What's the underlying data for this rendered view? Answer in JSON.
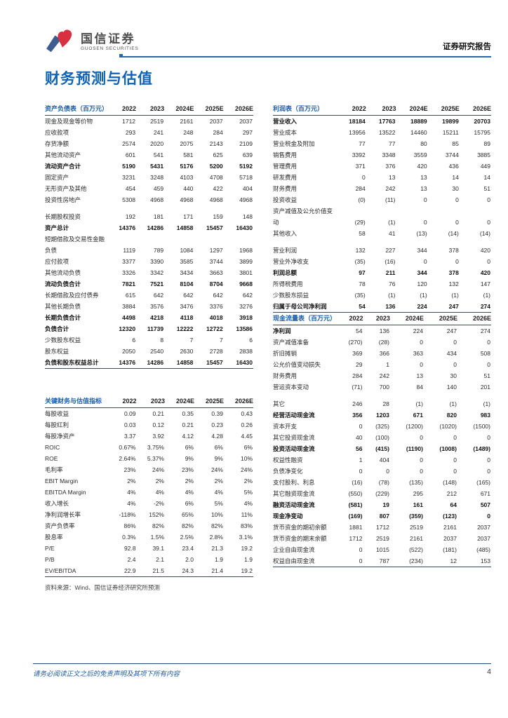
{
  "header": {
    "brand_cn": "国信证券",
    "brand_en": "GUOSEN SECURITIES",
    "report_type": "证券研究报告"
  },
  "page_title": "财务预测与估值",
  "source_note": "资料来源：Wind、国信证券经济研究所预测",
  "footer": {
    "disclaimer": "请务必阅读正文之后的免责声明及其项下所有内容",
    "page_number": "4"
  },
  "colors": {
    "accent_blue": "#2668b3",
    "title_blue": "#0f62b4",
    "table_title_blue": "#1e5fa8",
    "logo_blue": "#3e5c8f",
    "logo_red": "#d93040"
  },
  "tables": {
    "balance_sheet": {
      "title": "资产负债表（百万元）",
      "years": [
        "2022",
        "2023",
        "2024E",
        "2025E",
        "2026E"
      ],
      "rows": [
        {
          "label": "现金及现金等价物",
          "values": [
            "1712",
            "2519",
            "2161",
            "2037",
            "2037"
          ]
        },
        {
          "label": "应收款项",
          "values": [
            "293",
            "241",
            "248",
            "284",
            "297"
          ]
        },
        {
          "label": "存货净额",
          "values": [
            "2574",
            "2020",
            "2075",
            "2143",
            "2109"
          ]
        },
        {
          "label": "其他流动资产",
          "values": [
            "601",
            "541",
            "581",
            "625",
            "639"
          ]
        },
        {
          "label": "流动资产合计",
          "values": [
            "5190",
            "5431",
            "5176",
            "5200",
            "5192"
          ],
          "bold": true
        },
        {
          "label": "固定资产",
          "values": [
            "3231",
            "3248",
            "4103",
            "4708",
            "5718"
          ]
        },
        {
          "label": "无形资产及其他",
          "values": [
            "454",
            "459",
            "440",
            "422",
            "404"
          ]
        },
        {
          "label": "投资性房地产",
          "values": [
            "5308",
            "4968",
            "4968",
            "4968",
            "4968"
          ]
        },
        {
          "label": "长期股权投资",
          "values": [
            "192",
            "181",
            "171",
            "159",
            "148"
          ],
          "gap_before": true
        },
        {
          "label": "资产总计",
          "values": [
            "14376",
            "14286",
            "14858",
            "15457",
            "16430"
          ],
          "bold": true
        },
        {
          "label": "短期借款及交易性金融负债",
          "values": [
            "1119",
            "789",
            "1084",
            "1297",
            "1968"
          ]
        },
        {
          "label": "应付款项",
          "values": [
            "3377",
            "3390",
            "3585",
            "3744",
            "3899"
          ]
        },
        {
          "label": "其他流动负债",
          "values": [
            "3326",
            "3342",
            "3434",
            "3663",
            "3801"
          ]
        },
        {
          "label": "流动负债合计",
          "values": [
            "7821",
            "7521",
            "8104",
            "8704",
            "9668"
          ],
          "bold": true
        },
        {
          "label": "长期借款及应付债券",
          "values": [
            "615",
            "642",
            "642",
            "642",
            "642"
          ]
        },
        {
          "label": "其他长期负债",
          "values": [
            "3884",
            "3576",
            "3476",
            "3376",
            "3276"
          ]
        },
        {
          "label": "长期负债合计",
          "values": [
            "4498",
            "4218",
            "4118",
            "4018",
            "3918"
          ],
          "bold": true
        },
        {
          "label": "负债合计",
          "values": [
            "12320",
            "11739",
            "12222",
            "12722",
            "13586"
          ],
          "bold": true
        },
        {
          "label": "少数股东权益",
          "values": [
            "6",
            "8",
            "7",
            "7",
            "6"
          ]
        },
        {
          "label": "股东权益",
          "values": [
            "2050",
            "2540",
            "2630",
            "2728",
            "2838"
          ]
        },
        {
          "label": "负债和股东权益总计",
          "values": [
            "14376",
            "14286",
            "14858",
            "15457",
            "16430"
          ],
          "bold": true
        }
      ]
    },
    "key_metrics": {
      "title": "关键财务与估值指标",
      "years": [
        "2022",
        "2023",
        "2024E",
        "2025E",
        "2026E"
      ],
      "rows": [
        {
          "label": "每股收益",
          "values": [
            "0.09",
            "0.21",
            "0.35",
            "0.39",
            "0.43"
          ]
        },
        {
          "label": "每股红利",
          "values": [
            "0.03",
            "0.12",
            "0.21",
            "0.23",
            "0.26"
          ]
        },
        {
          "label": "每股净资产",
          "values": [
            "3.37",
            "3.92",
            "4.12",
            "4.28",
            "4.45"
          ]
        },
        {
          "label": "ROIC",
          "values": [
            "0.67%",
            "3.75%",
            "6%",
            "6%",
            "6%"
          ]
        },
        {
          "label": "ROE",
          "values": [
            "2.64%",
            "5.37%",
            "9%",
            "9%",
            "10%"
          ]
        },
        {
          "label": "毛利率",
          "values": [
            "23%",
            "24%",
            "23%",
            "24%",
            "24%"
          ]
        },
        {
          "label": "EBIT Margin",
          "values": [
            "2%",
            "2%",
            "2%",
            "2%",
            "2%"
          ]
        },
        {
          "label": "EBITDA Margin",
          "values": [
            "4%",
            "4%",
            "4%",
            "4%",
            "5%"
          ]
        },
        {
          "label": "收入增长",
          "values": [
            "4%",
            "-2%",
            "6%",
            "5%",
            "4%"
          ]
        },
        {
          "label": "净利润增长率",
          "values": [
            "-118%",
            "152%",
            "65%",
            "10%",
            "11%"
          ]
        },
        {
          "label": "资产负债率",
          "values": [
            "86%",
            "82%",
            "82%",
            "82%",
            "83%"
          ]
        },
        {
          "label": "股息率",
          "values": [
            "0.3%",
            "1.5%",
            "2.5%",
            "2.8%",
            "3.1%"
          ]
        },
        {
          "label": "P/E",
          "values": [
            "92.8",
            "39.1",
            "23.4",
            "21.3",
            "19.2"
          ]
        },
        {
          "label": "P/B",
          "values": [
            "2.4",
            "2.1",
            "2.0",
            "1.9",
            "1.9"
          ]
        },
        {
          "label": "EV/EBITDA",
          "values": [
            "22.9",
            "21.5",
            "24.3",
            "21.4",
            "19.2"
          ]
        }
      ]
    },
    "income_statement": {
      "title": "利润表（百万元）",
      "years": [
        "2022",
        "2023",
        "2024E",
        "2025E",
        "2026E"
      ],
      "rows": [
        {
          "label": "营业收入",
          "values": [
            "18184",
            "17763",
            "18889",
            "19899",
            "20703"
          ],
          "bold": true
        },
        {
          "label": "营业成本",
          "values": [
            "13956",
            "13522",
            "14460",
            "15211",
            "15795"
          ]
        },
        {
          "label": "营业税金及附加",
          "values": [
            "77",
            "77",
            "80",
            "85",
            "89"
          ]
        },
        {
          "label": "销售费用",
          "values": [
            "3392",
            "3348",
            "3559",
            "3744",
            "3885"
          ]
        },
        {
          "label": "管理费用",
          "values": [
            "371",
            "376",
            "420",
            "436",
            "449"
          ]
        },
        {
          "label": "研发费用",
          "values": [
            "0",
            "13",
            "13",
            "14",
            "14"
          ]
        },
        {
          "label": "财务费用",
          "values": [
            "284",
            "242",
            "13",
            "30",
            "51"
          ]
        },
        {
          "label": "投资收益",
          "values": [
            "(0)",
            "(11)",
            "0",
            "0",
            "0"
          ]
        },
        {
          "label": "资产减值及公允价值变动",
          "values": [
            "(29)",
            "(1)",
            "0",
            "0",
            "0"
          ]
        },
        {
          "label": "其他收入",
          "values": [
            "58",
            "41",
            "(13)",
            "(14)",
            "(14)"
          ]
        },
        {
          "label": "营业利润",
          "values": [
            "132",
            "227",
            "344",
            "378",
            "420"
          ],
          "gap_before": true
        },
        {
          "label": "营业外净收支",
          "values": [
            "(35)",
            "(16)",
            "0",
            "0",
            "0"
          ]
        },
        {
          "label": "利润总额",
          "values": [
            "97",
            "211",
            "344",
            "378",
            "420"
          ],
          "bold": true
        },
        {
          "label": "所得税费用",
          "values": [
            "78",
            "76",
            "120",
            "132",
            "147"
          ]
        },
        {
          "label": "少数股东损益",
          "values": [
            "(35)",
            "(1)",
            "(1)",
            "(1)",
            "(1)"
          ]
        },
        {
          "label": "归属于母公司净利润",
          "values": [
            "54",
            "136",
            "224",
            "247",
            "274"
          ],
          "bold": true
        }
      ]
    },
    "cash_flow": {
      "title": "现金流量表（百万元）",
      "years": [
        "2022",
        "2023",
        "2024E",
        "2025E",
        "2026E"
      ],
      "rows": [
        {
          "label": "净利润",
          "values": [
            "54",
            "136",
            "224",
            "247",
            "274"
          ],
          "label_bold": true
        },
        {
          "label": "资产减值准备",
          "values": [
            "(270)",
            "(28)",
            "0",
            "0",
            "0"
          ]
        },
        {
          "label": "折旧摊销",
          "values": [
            "369",
            "366",
            "363",
            "434",
            "508"
          ]
        },
        {
          "label": "公允价值变动损失",
          "values": [
            "29",
            "1",
            "0",
            "0",
            "0"
          ]
        },
        {
          "label": "财务费用",
          "values": [
            "284",
            "242",
            "13",
            "30",
            "51"
          ]
        },
        {
          "label": "营运资本变动",
          "values": [
            "(71)",
            "700",
            "84",
            "140",
            "201"
          ]
        },
        {
          "label": "其它",
          "values": [
            "246",
            "28",
            "(1)",
            "(1)",
            "(1)"
          ],
          "gap_before": true
        },
        {
          "label": "经营活动现金流",
          "values": [
            "356",
            "1203",
            "671",
            "820",
            "983"
          ],
          "bold": true
        },
        {
          "label": "资本开支",
          "values": [
            "0",
            "(325)",
            "(1200)",
            "(1020)",
            "(1500)"
          ]
        },
        {
          "label": "其它投资现金流",
          "values": [
            "40",
            "(100)",
            "0",
            "0",
            "0"
          ]
        },
        {
          "label": "投资活动现金流",
          "values": [
            "56",
            "(415)",
            "(1190)",
            "(1008)",
            "(1489)"
          ],
          "bold": true
        },
        {
          "label": "权益性融资",
          "values": [
            "1",
            "404",
            "0",
            "0",
            "0"
          ]
        },
        {
          "label": "负债净变化",
          "values": [
            "0",
            "0",
            "0",
            "0",
            "0"
          ]
        },
        {
          "label": "支付股利、利息",
          "values": [
            "(16)",
            "(78)",
            "(135)",
            "(148)",
            "(165)"
          ]
        },
        {
          "label": "其它融资现金流",
          "values": [
            "(550)",
            "(229)",
            "295",
            "212",
            "671"
          ]
        },
        {
          "label": "融资活动现金流",
          "values": [
            "(581)",
            "19",
            "161",
            "64",
            "507"
          ],
          "bold": true
        },
        {
          "label": "现金净变动",
          "values": [
            "(169)",
            "807",
            "(359)",
            "(123)",
            "0"
          ],
          "bold": true
        },
        {
          "label": "货币资金的期初余额",
          "values": [
            "1881",
            "1712",
            "2519",
            "2161",
            "2037"
          ]
        },
        {
          "label": "货币资金的期末余额",
          "values": [
            "1712",
            "2519",
            "2161",
            "2037",
            "2037"
          ]
        },
        {
          "label": "企业自由现金流",
          "values": [
            "0",
            "1015",
            "(522)",
            "(181)",
            "(485)"
          ]
        },
        {
          "label": "权益自由现金流",
          "values": [
            "0",
            "787",
            "(234)",
            "12",
            "153"
          ]
        }
      ]
    }
  }
}
